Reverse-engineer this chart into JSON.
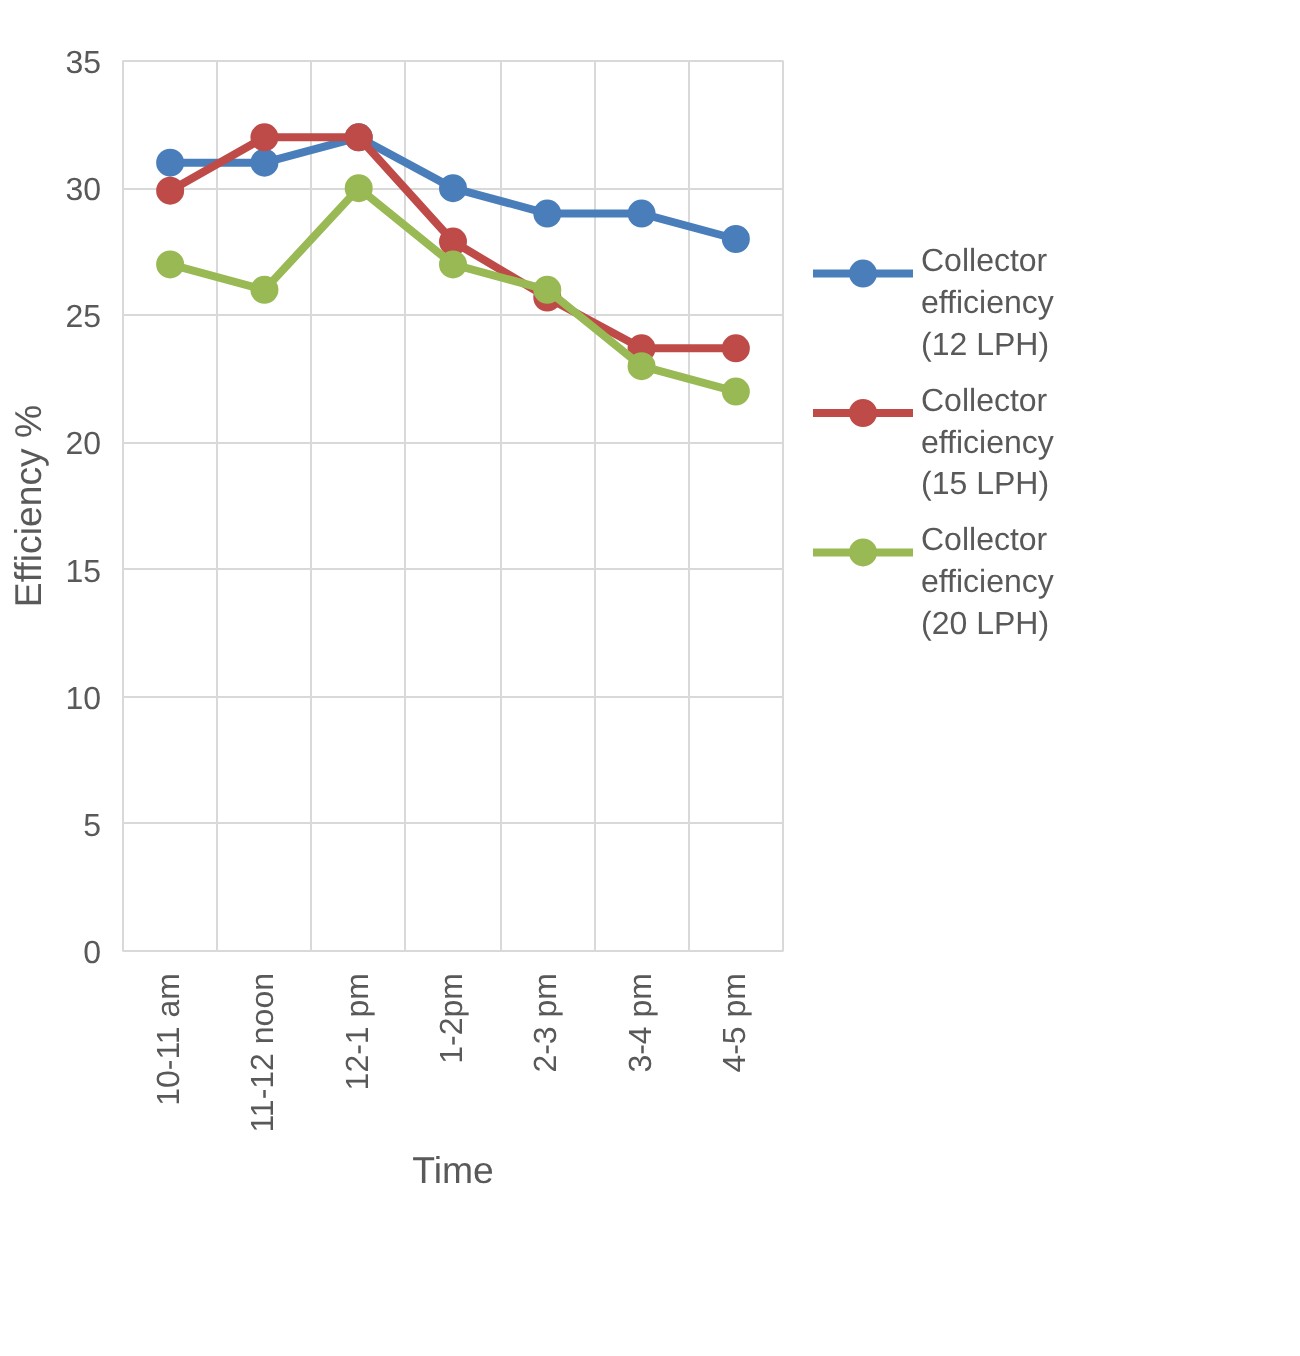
{
  "chart_data": {
    "type": "line",
    "xlabel": "Time",
    "ylabel": "Efficiency %",
    "categories": [
      "10-11 am",
      "11-12 noon",
      "12-1 pm",
      "1-2pm",
      "2-3 pm",
      "3-4 pm",
      "4-5 pm"
    ],
    "series": [
      {
        "name": "Collector efficiency (12 LPH)",
        "color": "#4a7ebb",
        "values": [
          31,
          31,
          32,
          30,
          29,
          29,
          28
        ]
      },
      {
        "name": "Collector efficiency (15 LPH)",
        "color": "#be4b48",
        "values": [
          29.9,
          32,
          32,
          27.9,
          25.7,
          23.7,
          23.7
        ]
      },
      {
        "name": "Collector efficiency (20 LPH)",
        "color": "#98b954",
        "values": [
          27,
          26,
          30,
          27,
          26,
          23,
          22
        ]
      }
    ],
    "ylim": [
      0,
      35
    ],
    "yticks": [
      0,
      5,
      10,
      15,
      20,
      25,
      30,
      35
    ],
    "grid": true,
    "legend": "right",
    "marker": "circle",
    "line_style": "solid"
  }
}
